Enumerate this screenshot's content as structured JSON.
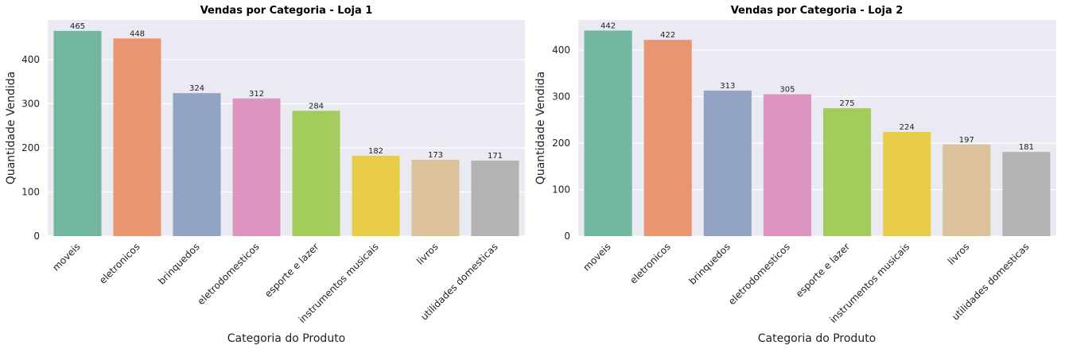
{
  "chart_data": [
    {
      "type": "bar",
      "title": "Vendas por Categoria - Loja 1",
      "xlabel": "Categoria do Produto",
      "ylabel": "Quantidade Vendida",
      "categories": [
        "moveis",
        "eletronicos",
        "brinquedos",
        "eletrodomesticos",
        "esporte e lazer",
        "instrumentos musicais",
        "livros",
        "utilidades domesticas"
      ],
      "values": [
        465,
        448,
        324,
        312,
        284,
        182,
        173,
        171
      ],
      "ylim": [
        0,
        490
      ],
      "yticks": [
        0,
        100,
        200,
        300,
        400
      ],
      "grid": true,
      "colors": [
        "#72b6a0",
        "#ea9571",
        "#93a3c3",
        "#dc94c0",
        "#a4cc5d",
        "#e9cc4a",
        "#dbc29a",
        "#b3b3b3"
      ],
      "background": "#eaeaf2"
    },
    {
      "type": "bar",
      "title": "Vendas por Categoria - Loja 2",
      "xlabel": "Categoria do Produto",
      "ylabel": "Quantidade Vendida",
      "categories": [
        "moveis",
        "eletronicos",
        "brinquedos",
        "eletrodomesticos",
        "esporte e lazer",
        "instrumentos musicais",
        "livros",
        "utilidades domesticas"
      ],
      "values": [
        442,
        422,
        313,
        305,
        275,
        224,
        197,
        181
      ],
      "ylim": [
        0,
        465
      ],
      "yticks": [
        0,
        100,
        200,
        300,
        400
      ],
      "grid": true,
      "colors": [
        "#72b6a0",
        "#ea9571",
        "#93a3c3",
        "#dc94c0",
        "#a4cc5d",
        "#e9cc4a",
        "#dbc29a",
        "#b3b3b3"
      ],
      "background": "#eaeaf2"
    }
  ]
}
